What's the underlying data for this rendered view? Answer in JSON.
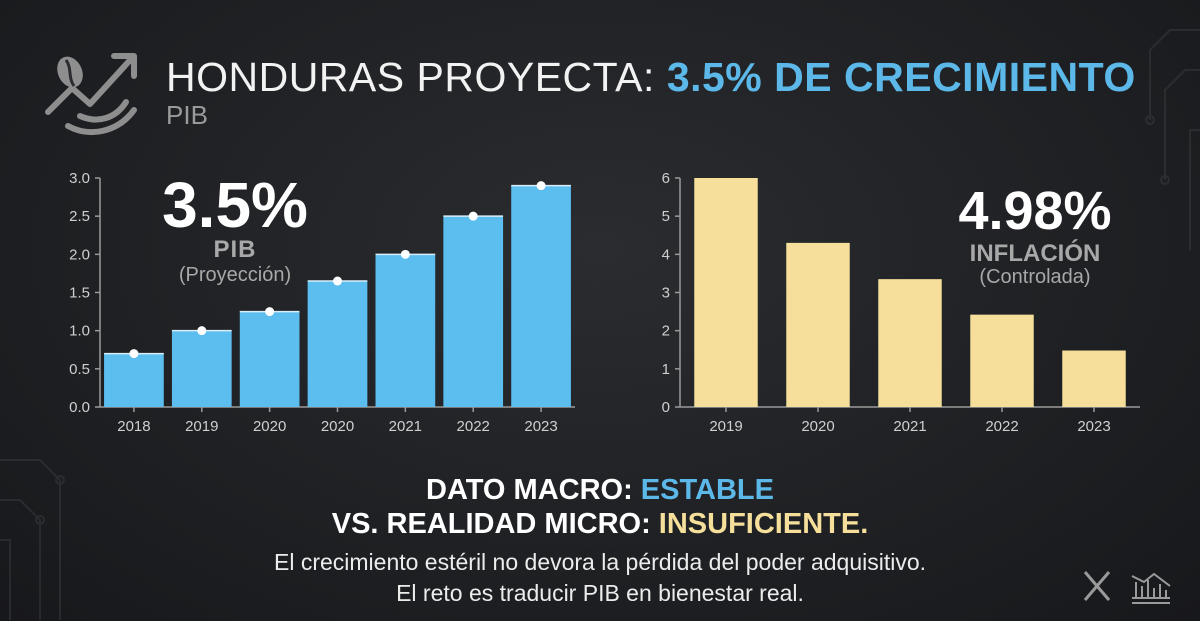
{
  "header": {
    "title_main": "HONDURAS PROYECTA: ",
    "title_highlight": "3.5% DE CRECIMIENTO",
    "subtitle": "PIB",
    "logo_icon": "coffee-banana-growth-icon",
    "accent_color": "#5cb8e8",
    "accent2_color": "#f5df9a"
  },
  "pib_callout": {
    "value": "3.5%",
    "label": "PIB",
    "note": "(Proyección)"
  },
  "inflation_callout": {
    "value": "4.98%",
    "label": "INFLACIÓN",
    "note": "(Controlada)"
  },
  "chart_data": [
    {
      "type": "bar",
      "categories": [
        "2018",
        "2019",
        "2020",
        "2020",
        "2021",
        "2022",
        "2023"
      ],
      "values": [
        0.7,
        1.0,
        1.25,
        1.65,
        2.0,
        2.5,
        2.9
      ],
      "ylim": [
        0,
        3.0
      ],
      "yticks": [
        "0.0",
        "0.5",
        "1.0",
        "1.5",
        "2.0",
        "2.5",
        "3.0"
      ],
      "markers": true,
      "color": "#5cbdef",
      "grid": false
    },
    {
      "type": "bar",
      "categories": [
        "2019",
        "2020",
        "2021",
        "2022",
        "2023"
      ],
      "values": [
        6.0,
        4.3,
        3.35,
        2.42,
        1.48
      ],
      "ylim": [
        0,
        6
      ],
      "yticks": [
        "0",
        "1",
        "2",
        "3",
        "4",
        "5",
        "6"
      ],
      "markers": false,
      "color": "#f5df9a",
      "grid": false
    }
  ],
  "bottom": {
    "line1_prefix": "DATO MACRO: ",
    "line1_highlight": "ESTABLE",
    "line2_prefix": "VS. REALIDAD MICRO: ",
    "line2_highlight": "INSUFICIENTE.",
    "line3": "El crecimiento estéril no devora la pérdida del poder adquisitivo.",
    "line4": "El reto es traducir PIB en bienestar real."
  },
  "footer_icons": [
    "x-icon",
    "bank-chart-icon"
  ]
}
